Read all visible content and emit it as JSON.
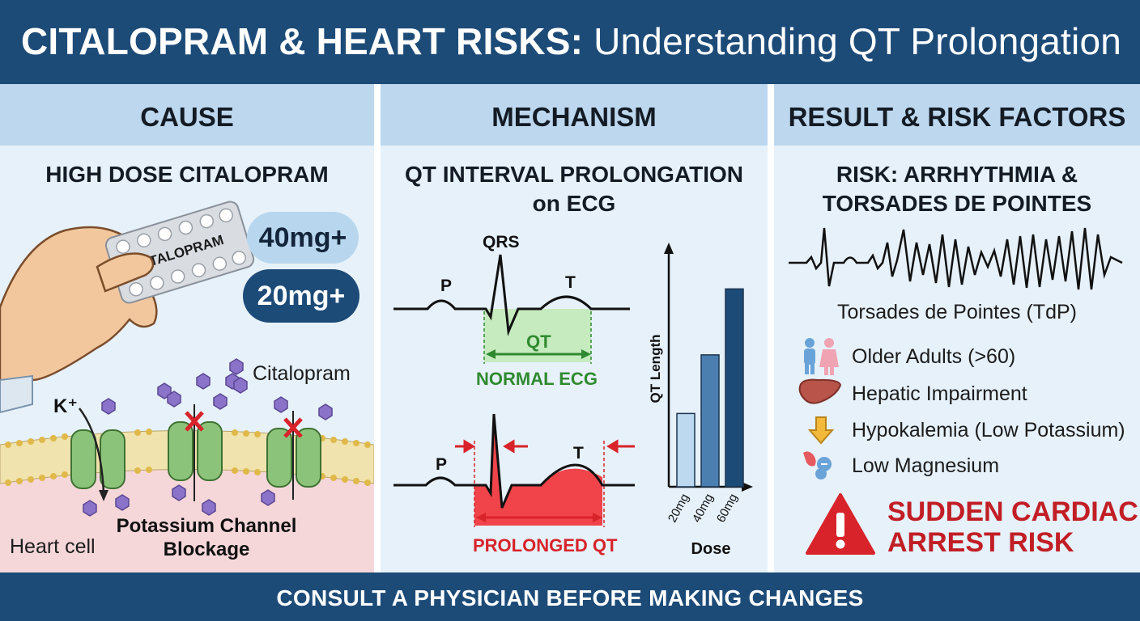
{
  "header": {
    "title_bold": "CITALOPRAM & HEART RISKS:",
    "title_rest": "Understanding QT Prolongation"
  },
  "panels": {
    "cause": {
      "heading": "CAUSE",
      "subtitle": "HIGH DOSE CITALOPRAM",
      "blister_label": "CITALOPRAM",
      "dose_high": "40mg+",
      "dose_low": "20mg+",
      "ion_label": "K⁺",
      "drug_label": "Citalopram",
      "cell_label": "Heart cell",
      "blockage_line1": "Potassium Channel",
      "blockage_line2": "Blockage"
    },
    "mechanism": {
      "heading": "MECHANISM",
      "subtitle_line1": "QT INTERVAL PROLONGATION",
      "subtitle_line2": "on ECG",
      "wave_p": "P",
      "wave_qrs": "QRS",
      "wave_t": "T",
      "qt_label": "QT",
      "normal_label": "NORMAL ECG",
      "prolonged_label": "PROLONGED QT",
      "colors": {
        "normal": "#2f8a2f",
        "prolonged": "#d8232a"
      }
    },
    "result": {
      "heading": "RESULT & RISK FACTORS",
      "subtitle_line1": "RISK: ARRHYTHMIA &",
      "subtitle_line2": "TORSADES DE POINTES",
      "tdp_caption": "Torsades de Pointes (TdP)",
      "risk_factors": [
        {
          "icon": "older-adults-icon",
          "label": "Older Adults (>60)"
        },
        {
          "icon": "liver-icon",
          "label": "Hepatic Impairment"
        },
        {
          "icon": "down-arrow-icon",
          "label": "Hypokalemia (Low Potassium)"
        },
        {
          "icon": "magnesium-icon",
          "label": "Low Magnesium"
        }
      ],
      "warning_line1": "SUDDEN CARDIAC",
      "warning_line2": "ARREST RISK",
      "warning_icon": "warning-triangle-icon"
    }
  },
  "chart_data": {
    "type": "bar",
    "categories": [
      "20mg",
      "40mg",
      "60mg"
    ],
    "values": [
      1,
      1.8,
      2.7
    ],
    "xlabel": "Dose",
    "ylabel": "QT Length",
    "ylim": [
      0,
      3.2
    ],
    "colors": [
      "#bcd9ef",
      "#4a7fb0",
      "#1d4b78"
    ]
  },
  "footer": {
    "text": "CONSULT A PHYSICIAN BEFORE MAKING CHANGES"
  }
}
